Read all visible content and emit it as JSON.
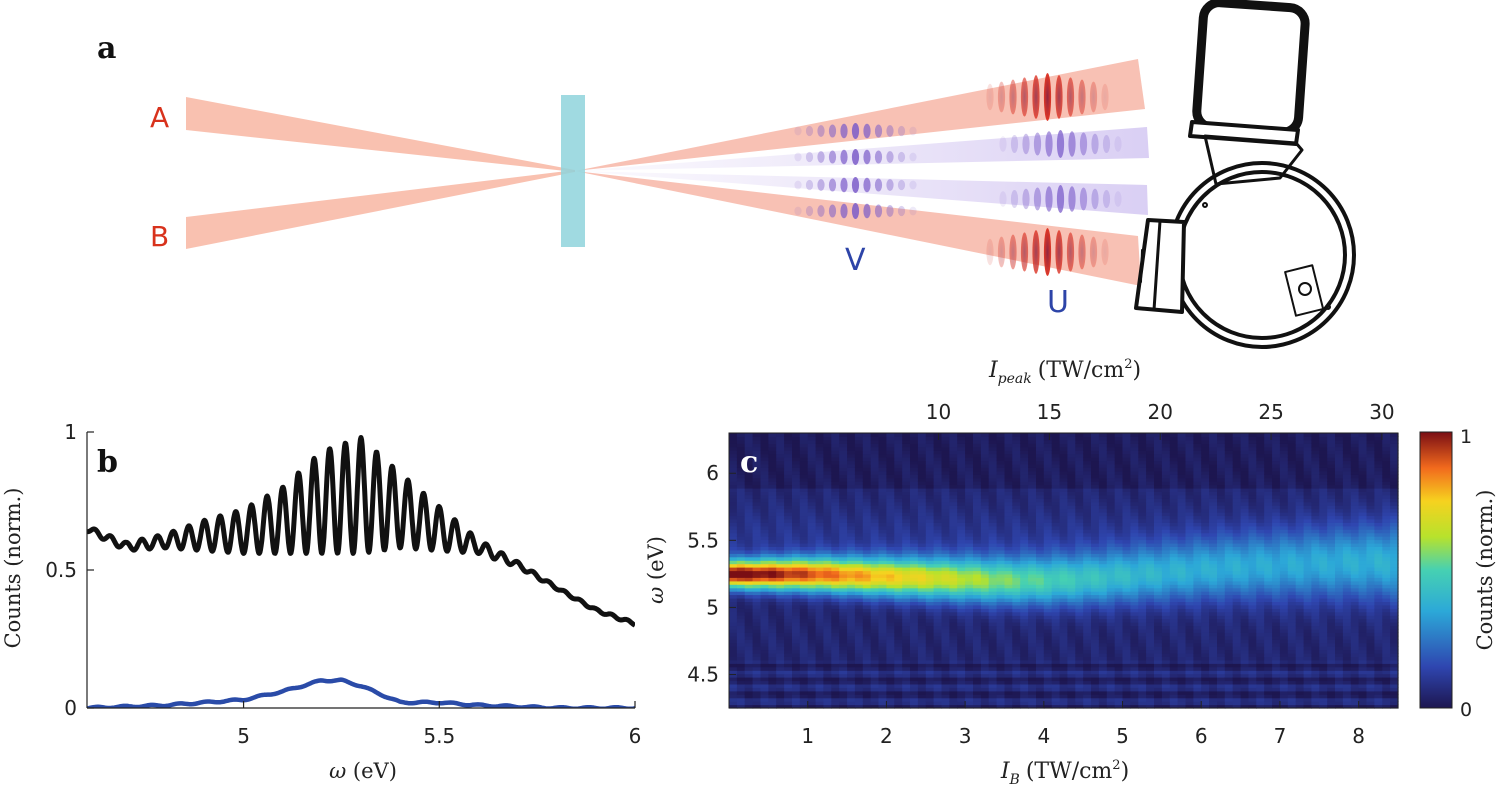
{
  "panel_labels": {
    "a": "a",
    "b": "b",
    "c": "c"
  },
  "schematic": {
    "beam_labels": [
      "A",
      "B"
    ],
    "pulse_labels": [
      "V",
      "U"
    ],
    "colors": {
      "beam": "#f7a78f",
      "pulse_red": "#e0301e",
      "pulse_purple": "#7b5cc9",
      "sample": "#8fd3dc",
      "label_red": "#d8321c",
      "label_blue": "#2d44a8"
    }
  },
  "chart_data": [
    {
      "type": "line",
      "panel": "b",
      "xlabel_symbol": "ω",
      "xlabel_unit": "(eV)",
      "ylabel": "Counts (norm.)",
      "xlim": [
        4.6,
        6.0
      ],
      "ylim": [
        0,
        1
      ],
      "xticks": [
        5,
        5.5,
        6
      ],
      "xtick_labels": [
        "5",
        "5.5",
        "6"
      ],
      "yticks": [
        0,
        0.5,
        1
      ],
      "ytick_labels": [
        "0",
        "0.5",
        "1"
      ],
      "series": [
        {
          "color": "#111111",
          "envelope_x": [
            4.6,
            4.7,
            4.8,
            4.9,
            5.0,
            5.1,
            5.2,
            5.3,
            5.4,
            5.5,
            5.6,
            5.7,
            5.8,
            5.9,
            6.0
          ],
          "upper": [
            0.66,
            0.6,
            0.63,
            0.68,
            0.72,
            0.8,
            0.93,
            0.98,
            0.85,
            0.73,
            0.61,
            0.53,
            0.44,
            0.36,
            0.31
          ],
          "lower": [
            0.64,
            0.57,
            0.58,
            0.57,
            0.56,
            0.56,
            0.56,
            0.56,
            0.58,
            0.57,
            0.56,
            0.51,
            0.43,
            0.35,
            0.3
          ],
          "fringe_period_ev": 0.04
        },
        {
          "color": "#2a4ba8",
          "x": [
            4.6,
            4.8,
            4.9,
            5.0,
            5.1,
            5.2,
            5.25,
            5.3,
            5.4,
            5.5,
            5.6,
            5.8,
            6.0
          ],
          "y": [
            0.0,
            0.01,
            0.02,
            0.03,
            0.06,
            0.1,
            0.1,
            0.08,
            0.02,
            0.02,
            0.01,
            0.0,
            0.0
          ]
        }
      ]
    },
    {
      "type": "heatmap",
      "panel": "c",
      "xlabel_symbol": "I",
      "xlabel_sub": "B",
      "xlabel_unit": "(TW/cm",
      "xlabel_sup": "2",
      "xlabel_close": ")",
      "top_label_symbol": "I",
      "top_label_sub": "peak",
      "top_label_unit": "(TW/cm",
      "top_label_sup": "2",
      "top_label_close": ")",
      "ylabel_symbol": "ω",
      "ylabel_unit": "(eV)",
      "xlim": [
        0,
        8.5
      ],
      "ylim": [
        4.25,
        6.3
      ],
      "xticks": [
        1,
        2,
        3,
        4,
        5,
        6,
        7,
        8
      ],
      "xtick_labels": [
        "1",
        "2",
        "3",
        "4",
        "5",
        "6",
        "7",
        "8"
      ],
      "yticks": [
        4.5,
        5,
        5.5,
        6
      ],
      "ytick_labels": [
        "4.5",
        "5",
        "5.5",
        "6"
      ],
      "top_ticks": [
        10,
        15,
        20,
        25,
        30
      ],
      "top_tick_labels": [
        "10",
        "15",
        "20",
        "25",
        "30"
      ],
      "peak_per_IB": 3.55,
      "peak_offset": 0.55,
      "ridge": {
        "IB": [
          0.0,
          0.5,
          1.0,
          1.5,
          2.0,
          2.5,
          3.0,
          3.5,
          4.0,
          4.5,
          5.0,
          5.5,
          6.0,
          6.5,
          7.0,
          7.5,
          8.0,
          8.5
        ],
        "center_ev": [
          5.25,
          5.25,
          5.25,
          5.24,
          5.23,
          5.22,
          5.21,
          5.2,
          5.2,
          5.21,
          5.23,
          5.25,
          5.27,
          5.29,
          5.3,
          5.31,
          5.32,
          5.32
        ],
        "peak": [
          1.0,
          0.93,
          0.85,
          0.77,
          0.7,
          0.64,
          0.57,
          0.5,
          0.44,
          0.39,
          0.35,
          0.32,
          0.3,
          0.29,
          0.28,
          0.28,
          0.29,
          0.3
        ]
      },
      "colorbar": {
        "label": "Counts (norm.)",
        "ticks": [
          0,
          1
        ],
        "tick_labels": [
          "0",
          "1"
        ]
      }
    }
  ]
}
